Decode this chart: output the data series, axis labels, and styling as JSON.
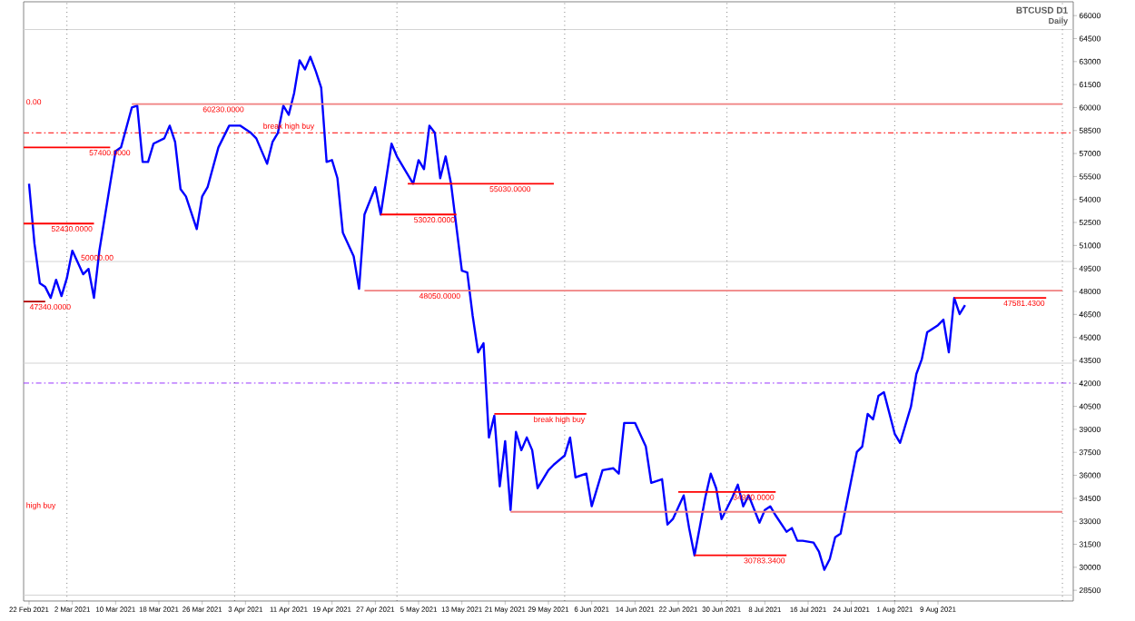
{
  "chart_data": {
    "type": "line",
    "title": "BTCUSD D1",
    "subtitle": "Daily",
    "xlim": [
      "2021-02-21",
      "2021-09-03"
    ],
    "ylim": [
      27800,
      66900
    ],
    "xticks": [
      {
        "value": "2021-02-22",
        "label": "22 Feb 2021"
      },
      {
        "value": "2021-03-02",
        "label": "2 Mar 2021"
      },
      {
        "value": "2021-03-10",
        "label": "10 Mar 2021"
      },
      {
        "value": "2021-03-18",
        "label": "18 Mar 2021"
      },
      {
        "value": "2021-03-26",
        "label": "26 Mar 2021"
      },
      {
        "value": "2021-04-03",
        "label": "3 Apr 2021"
      },
      {
        "value": "2021-04-11",
        "label": "11 Apr 2021"
      },
      {
        "value": "2021-04-19",
        "label": "19 Apr 2021"
      },
      {
        "value": "2021-04-27",
        "label": "27 Apr 2021"
      },
      {
        "value": "2021-05-05",
        "label": "5 May 2021"
      },
      {
        "value": "2021-05-13",
        "label": "13 May 2021"
      },
      {
        "value": "2021-05-21",
        "label": "21 May 2021"
      },
      {
        "value": "2021-05-29",
        "label": "29 May 2021"
      },
      {
        "value": "2021-06-06",
        "label": "6 Jun 2021"
      },
      {
        "value": "2021-06-14",
        "label": "14 Jun 2021"
      },
      {
        "value": "2021-06-22",
        "label": "22 Jun 2021"
      },
      {
        "value": "2021-06-30",
        "label": "30 Jun 2021"
      },
      {
        "value": "2021-07-08",
        "label": "8 Jul 2021"
      },
      {
        "value": "2021-07-16",
        "label": "16 Jul 2021"
      },
      {
        "value": "2021-07-24",
        "label": "24 Jul 2021"
      },
      {
        "value": "2021-08-01",
        "label": "1 Aug 2021"
      },
      {
        "value": "2021-08-09",
        "label": "9 Aug 2021"
      }
    ],
    "yticks": [
      28500,
      30000,
      31500,
      33000,
      34500,
      36000,
      37500,
      39000,
      40500,
      42000,
      43500,
      45000,
      46500,
      48000,
      49500,
      51000,
      52500,
      54000,
      55500,
      57000,
      58500,
      60000,
      61500,
      63000,
      64500,
      66000
    ],
    "series": [
      {
        "color": "#0000ff",
        "x": [
          "2021-02-22",
          "2021-02-23",
          "2021-02-24",
          "2021-02-25",
          "2021-02-26",
          "2021-02-27",
          "2021-02-28",
          "2021-03-01",
          "2021-03-02",
          "2021-03-04",
          "2021-03-05",
          "2021-03-06",
          "2021-03-07",
          "2021-03-09",
          "2021-03-10",
          "2021-03-11",
          "2021-03-13",
          "2021-03-14",
          "2021-03-15",
          "2021-03-16",
          "2021-03-17",
          "2021-03-19",
          "2021-03-20",
          "2021-03-21",
          "2021-03-22",
          "2021-03-23",
          "2021-03-25",
          "2021-03-26",
          "2021-03-27",
          "2021-03-29",
          "2021-03-31",
          "2021-04-02",
          "2021-04-04",
          "2021-04-05",
          "2021-04-07",
          "2021-04-08",
          "2021-04-09",
          "2021-04-10",
          "2021-04-11",
          "2021-04-12",
          "2021-04-13",
          "2021-04-14",
          "2021-04-15",
          "2021-04-16",
          "2021-04-17",
          "2021-04-18",
          "2021-04-19",
          "2021-04-20",
          "2021-04-21",
          "2021-04-23",
          "2021-04-24",
          "2021-04-25",
          "2021-04-27",
          "2021-04-28",
          "2021-04-30",
          "2021-05-01",
          "2021-05-04",
          "2021-05-05",
          "2021-05-06",
          "2021-05-07",
          "2021-05-08",
          "2021-05-09",
          "2021-05-10",
          "2021-05-11",
          "2021-05-13",
          "2021-05-14",
          "2021-05-15",
          "2021-05-16",
          "2021-05-17",
          "2021-05-18",
          "2021-05-19",
          "2021-05-20",
          "2021-05-21",
          "2021-05-22",
          "2021-05-23",
          "2021-05-24",
          "2021-05-25",
          "2021-05-26",
          "2021-05-27",
          "2021-05-29",
          "2021-05-30",
          "2021-06-01",
          "2021-06-02",
          "2021-06-03",
          "2021-06-05",
          "2021-06-06",
          "2021-06-08",
          "2021-06-10",
          "2021-06-11",
          "2021-06-12",
          "2021-06-14",
          "2021-06-16",
          "2021-06-17",
          "2021-06-19",
          "2021-06-20",
          "2021-06-21",
          "2021-06-23",
          "2021-06-24",
          "2021-06-25",
          "2021-06-27",
          "2021-06-28",
          "2021-06-29",
          "2021-06-30",
          "2021-07-02",
          "2021-07-03",
          "2021-07-04",
          "2021-07-05",
          "2021-07-07",
          "2021-07-08",
          "2021-07-09",
          "2021-07-10",
          "2021-07-12",
          "2021-07-13",
          "2021-07-14",
          "2021-07-15",
          "2021-07-17",
          "2021-07-18",
          "2021-07-19",
          "2021-07-20",
          "2021-07-21",
          "2021-07-22",
          "2021-07-23",
          "2021-07-25",
          "2021-07-26",
          "2021-07-27",
          "2021-07-28",
          "2021-07-29",
          "2021-07-30",
          "2021-08-01",
          "2021-08-02",
          "2021-08-04",
          "2021-08-05",
          "2021-08-06",
          "2021-08-07",
          "2021-08-09",
          "2021-08-10",
          "2021-08-11",
          "2021-08-12",
          "2021-08-13",
          "2021-08-14"
        ],
        "values": [
          55030,
          51130,
          48530,
          48290,
          47580,
          48760,
          47700,
          48880,
          50660,
          49120,
          49470,
          47580,
          50660,
          55030,
          57160,
          57400,
          60000,
          60120,
          56450,
          56450,
          57640,
          57990,
          58820,
          57750,
          54680,
          54200,
          52070,
          54200,
          54800,
          57400,
          58820,
          58820,
          58350,
          57990,
          56330,
          57750,
          58350,
          60120,
          59530,
          60950,
          63080,
          62490,
          63310,
          62370,
          61300,
          56450,
          56570,
          55390,
          51840,
          50300,
          48170,
          53020,
          54800,
          53020,
          57640,
          56810,
          55030,
          56570,
          55980,
          58820,
          58350,
          55390,
          56810,
          55030,
          49350,
          49240,
          46400,
          44030,
          44620,
          38470,
          39890,
          35280,
          38230,
          33740,
          38830,
          37640,
          38470,
          37640,
          35160,
          36340,
          36700,
          37290,
          38470,
          35870,
          36110,
          33980,
          36340,
          36460,
          36110,
          39420,
          39420,
          37880,
          35510,
          35750,
          32790,
          33150,
          34690,
          32560,
          30780,
          34570,
          36110,
          35160,
          33150,
          34570,
          35390,
          33980,
          34690,
          32910,
          33740,
          33980,
          33380,
          32320,
          32560,
          31730,
          31730,
          31610,
          31020,
          29840,
          30540,
          31960,
          32200,
          33980,
          37520,
          37880,
          40010,
          39650,
          41190,
          41430,
          38710,
          38120,
          40480,
          42610,
          43560,
          45330,
          45800,
          46160,
          44030,
          47580,
          46520,
          47110
        ]
      },
      {
        "color": "#f08080",
        "x": [
          "2021-03-13",
          "2021-09-01"
        ],
        "values": [
          60230,
          60230
        ]
      },
      {
        "color": "#ff0000",
        "x": [
          "2021-02-21",
          "2021-03-09"
        ],
        "values": [
          57400,
          57400
        ]
      },
      {
        "color": "#ff0000",
        "x": [
          "2021-02-21",
          "2021-03-06"
        ],
        "values": [
          52430,
          52430
        ]
      },
      {
        "color": "#b00000",
        "x": [
          "2021-02-21",
          "2021-02-25"
        ],
        "values": [
          47340,
          47340
        ]
      },
      {
        "color": "#ff0000",
        "x": [
          "2021-05-03",
          "2021-05-30"
        ],
        "values": [
          55030,
          55030
        ]
      },
      {
        "color": "#ff0000",
        "x": [
          "2021-04-28",
          "2021-05-12"
        ],
        "values": [
          53020,
          53020
        ]
      },
      {
        "color": "#f08080",
        "x": [
          "2021-04-25",
          "2021-09-01"
        ],
        "values": [
          48050,
          48050
        ]
      },
      {
        "color": "#ff0000",
        "x": [
          "2021-08-12",
          "2021-08-29"
        ],
        "values": [
          47581.43,
          47581.43
        ]
      },
      {
        "color": "#ff0000",
        "x": [
          "2021-05-19",
          "2021-06-05"
        ],
        "values": [
          40010,
          40010
        ]
      },
      {
        "color": "#f08080",
        "x": [
          "2021-05-22",
          "2021-09-01"
        ],
        "values": [
          33620,
          33620
        ]
      },
      {
        "color": "#ff0000",
        "x": [
          "2021-06-22",
          "2021-07-10"
        ],
        "values": [
          34920,
          34920
        ]
      },
      {
        "color": "#ff0000",
        "x": [
          "2021-06-25",
          "2021-07-12"
        ],
        "values": [
          30783.34,
          30783.34
        ]
      }
    ],
    "ref_lines": [
      {
        "axis": "y",
        "value": 58350,
        "color": "#ff0000",
        "line_style": "dashed"
      },
      {
        "axis": "y",
        "value": 42020,
        "color": "#9933ff",
        "line_style": "dashed"
      },
      {
        "axis": "y",
        "value": 65090,
        "color": "#d3d3d3"
      },
      {
        "axis": "y",
        "value": 49950,
        "color": "#d3d3d3"
      },
      {
        "axis": "y",
        "value": 43320,
        "color": "#d3d3d3"
      },
      {
        "axis": "y",
        "value": 28180,
        "color": "#d3d3d3"
      },
      {
        "axis": "x",
        "value": "2021-03-01",
        "color": "#404040",
        "line_style": "dotted"
      },
      {
        "axis": "x",
        "value": "2021-04-01",
        "color": "#404040",
        "line_style": "dotted"
      },
      {
        "axis": "x",
        "value": "2021-05-01",
        "color": "#404040",
        "line_style": "dotted"
      },
      {
        "axis": "x",
        "value": "2021-06-01",
        "color": "#404040",
        "line_style": "dotted"
      },
      {
        "axis": "x",
        "value": "2021-07-01",
        "color": "#404040",
        "line_style": "dotted"
      },
      {
        "axis": "x",
        "value": "2021-08-01",
        "color": "#404040",
        "line_style": "dotted"
      },
      {
        "axis": "x",
        "value": "2021-09-01",
        "color": "#404040",
        "line_style": "dotted"
      }
    ],
    "annotations": [
      {
        "text": "60230.0000",
        "x": "2021-04-03",
        "y": 60230
      },
      {
        "text": "break high buy",
        "x": "2021-04-16",
        "y": 58350
      },
      {
        "text": "57400.0000",
        "x": "2021-03-13",
        "y": 57400
      },
      {
        "text": "52430.0000",
        "x": "2021-03-06",
        "y": 52430
      },
      {
        "text": "47340.0000",
        "x": "2021-03-02",
        "y": 47340
      },
      {
        "text": "55030.0000",
        "x": "2021-05-26",
        "y": 55030
      },
      {
        "text": "53020.0000",
        "x": "2021-05-12",
        "y": 53020
      },
      {
        "text": "48050.0000",
        "x": "2021-05-13",
        "y": 48050
      },
      {
        "text": "47581.4300",
        "x": "2021-08-29",
        "y": 47581.43
      },
      {
        "text": "break high buy",
        "x": "2021-06-05",
        "y": 40010
      },
      {
        "text": "34920.0000",
        "x": "2021-07-10",
        "y": 34920
      },
      {
        "text": "30783.3400",
        "x": "2021-07-12",
        "y": 30783.34
      },
      "50000.00",
      "0.00",
      "high buy"
    ]
  }
}
